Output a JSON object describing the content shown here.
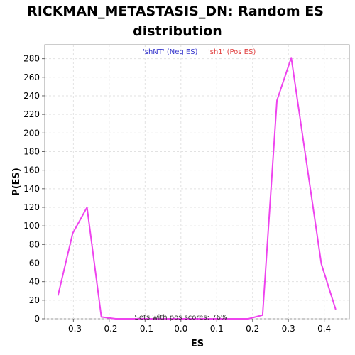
{
  "chart_data": {
    "type": "line",
    "title_line1": "RICKMAN_METASTASIS_DN: Random ES",
    "title_line2": "distribution",
    "xlabel": "ES",
    "ylabel": "P(ES)",
    "xlim": [
      -0.38,
      0.47
    ],
    "ylim": [
      0,
      295
    ],
    "xticks": [
      -0.3,
      -0.2,
      -0.1,
      0.0,
      0.1,
      0.2,
      0.3,
      0.4
    ],
    "xtick_labels": [
      "-0.3",
      "-0.2",
      "-0.1",
      "0.0",
      "0.1",
      "0.2",
      "0.3",
      "0.4"
    ],
    "yticks": [
      0,
      20,
      40,
      60,
      80,
      100,
      120,
      140,
      160,
      180,
      200,
      220,
      240,
      260,
      280
    ],
    "ytick_labels": [
      "0",
      "20",
      "40",
      "60",
      "80",
      "100",
      "120",
      "140",
      "160",
      "180",
      "200",
      "220",
      "240",
      "260",
      "280"
    ],
    "grid": true,
    "legend": [
      {
        "label": "'shNT' (Neg ES)",
        "color": "#3333cc"
      },
      {
        "label": "'sh1' (Pos ES)",
        "color": "#e04040"
      }
    ],
    "annotation": "Sets with pos scores: 76%",
    "series": [
      {
        "color": "#ee44ee",
        "x": [
          -0.343,
          -0.302,
          -0.262,
          -0.222,
          -0.182,
          -0.142,
          -0.102,
          -0.062,
          -0.022,
          0.018,
          0.058,
          0.098,
          0.138,
          0.188,
          0.228,
          0.268,
          0.308,
          0.348,
          0.392,
          0.432
        ],
        "y": [
          25,
          92,
          120,
          2,
          0,
          0,
          0,
          0,
          0,
          0,
          0,
          0,
          0,
          0,
          4,
          235,
          281,
          175,
          59,
          10
        ]
      }
    ]
  }
}
